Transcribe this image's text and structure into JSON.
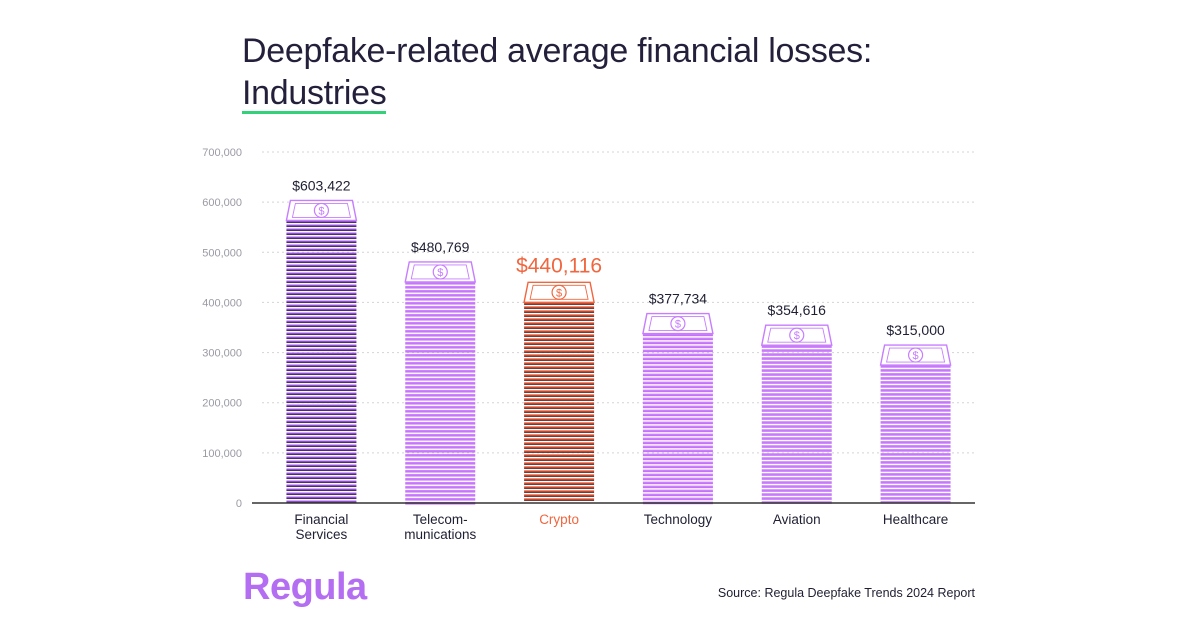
{
  "title_line1": "Deepfake-related average financial losses:",
  "title_line2": "Industries",
  "logo_text": "Regula",
  "source_text": "Source: Regula Deepfake Trends 2024 Report",
  "colors": {
    "default_bar": "#c77dff",
    "dark_bar": "#3a1f5c",
    "highlight_bar": "#f0663f",
    "label_default": "#1f1f33",
    "label_highlight": "#f0663f",
    "grid": "#d4d4d8",
    "axis": "#333333",
    "tick": "#9a9aa5"
  },
  "chart_data": {
    "type": "bar",
    "title": "Deepfake-related average financial losses: Industries",
    "categories": [
      [
        "Financial",
        "Services"
      ],
      [
        "Telecom-",
        "munications"
      ],
      [
        "Crypto"
      ],
      [
        "Technology"
      ],
      [
        "Aviation"
      ],
      [
        "Healthcare"
      ]
    ],
    "values": [
      603422,
      480769,
      440116,
      377734,
      354616,
      315000
    ],
    "value_labels": [
      "$603,422",
      "$480,769",
      "$440,116",
      "$377,734",
      "$354,616",
      "$315,000"
    ],
    "highlight_index": 2,
    "dark_index": 0,
    "ylim": [
      0,
      700000
    ],
    "yticks": [
      0,
      100000,
      200000,
      300000,
      400000,
      500000,
      600000,
      700000
    ],
    "ytick_labels": [
      "0",
      "100,000",
      "200,000",
      "300,000",
      "400,000",
      "500,000",
      "600,000",
      "700,000"
    ],
    "grid": true
  }
}
